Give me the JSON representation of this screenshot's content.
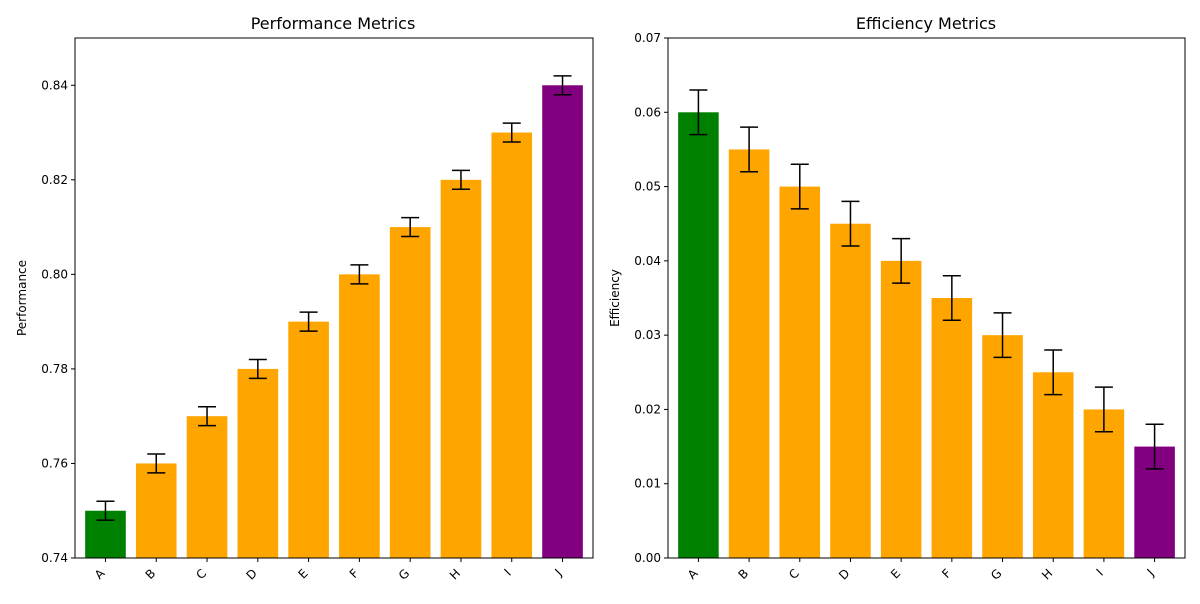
{
  "chart_data": [
    {
      "type": "bar",
      "title": "Performance Metrics",
      "xlabel": "",
      "ylabel": "Performance",
      "categories": [
        "A",
        "B",
        "C",
        "D",
        "E",
        "F",
        "G",
        "H",
        "I",
        "J"
      ],
      "values": [
        0.75,
        0.76,
        0.77,
        0.78,
        0.79,
        0.8,
        0.81,
        0.82,
        0.83,
        0.84
      ],
      "errors": [
        0.002,
        0.002,
        0.002,
        0.002,
        0.002,
        0.002,
        0.002,
        0.002,
        0.002,
        0.002
      ],
      "colors": [
        "#008000",
        "#ffa500",
        "#ffa500",
        "#ffa500",
        "#ffa500",
        "#ffa500",
        "#ffa500",
        "#ffa500",
        "#ffa500",
        "#800080"
      ],
      "ylim": [
        0.74,
        0.85
      ],
      "yticks": [
        0.74,
        0.76,
        0.78,
        0.8,
        0.82,
        0.84
      ],
      "ytick_labels": [
        "0.74",
        "0.76",
        "0.78",
        "0.80",
        "0.82",
        "0.84"
      ],
      "grid": false,
      "legend": "none"
    },
    {
      "type": "bar",
      "title": "Efficiency Metrics",
      "xlabel": "",
      "ylabel": "Efficiency",
      "categories": [
        "A",
        "B",
        "C",
        "D",
        "E",
        "F",
        "G",
        "H",
        "I",
        "J"
      ],
      "values": [
        0.06,
        0.055,
        0.05,
        0.045,
        0.04,
        0.035,
        0.03,
        0.025,
        0.02,
        0.015
      ],
      "errors": [
        0.003,
        0.003,
        0.003,
        0.003,
        0.003,
        0.003,
        0.003,
        0.003,
        0.003,
        0.003
      ],
      "colors": [
        "#008000",
        "#ffa500",
        "#ffa500",
        "#ffa500",
        "#ffa500",
        "#ffa500",
        "#ffa500",
        "#ffa500",
        "#ffa500",
        "#800080"
      ],
      "ylim": [
        0.0,
        0.07
      ],
      "yticks": [
        0.0,
        0.01,
        0.02,
        0.03,
        0.04,
        0.05,
        0.06,
        0.07
      ],
      "ytick_labels": [
        "0.00",
        "0.01",
        "0.02",
        "0.03",
        "0.04",
        "0.05",
        "0.06",
        "0.07"
      ],
      "grid": false,
      "legend": "none"
    }
  ]
}
